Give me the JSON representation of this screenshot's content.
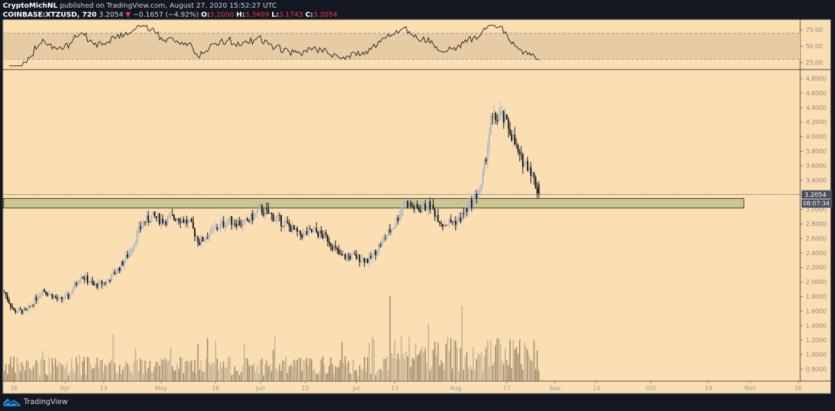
{
  "header": {
    "author": "CryptoMichNL",
    "published_text": "published on TradingView.com, August 27, 2020 15:52:27 UTC",
    "symbol": "COINBASE:XTZUSD, 720",
    "last": "3.2054",
    "change": "−0.1657 (−4.92%)",
    "o_label": "O:",
    "o": "3.2000",
    "h_label": "H:",
    "h": "3.3409",
    "l_label": "L:",
    "l": "3.1743",
    "c_label": "C:",
    "c": "3.2054"
  },
  "footer": {
    "brand": "TradingView"
  },
  "colors": {
    "background": "#fbdeb2",
    "up": "#a7b3c7",
    "down": "#111111",
    "zone": "#c9c78f",
    "panel": "#131722",
    "change_down": "#f23645"
  },
  "chart_data": [
    {
      "type": "candlestick",
      "timeframe": "12h",
      "price_ticks": [
        "4.8000",
        "4.6000",
        "4.4000",
        "4.2000",
        "4.0000",
        "3.8000",
        "3.6000",
        "3.4000",
        "3.0000",
        "2.8000",
        "2.6000",
        "2.4000",
        "2.2000",
        "2.0000",
        "1.8000",
        "1.6000",
        "1.4000",
        "1.2000",
        "1.0000",
        "0.8000"
      ],
      "ylim": [
        0.7,
        4.85
      ],
      "time_ticks": [
        "16",
        "Apr",
        "13",
        "May",
        "18",
        "Jun",
        "15",
        "Jul",
        "13",
        "Aug",
        "17",
        "Sep",
        "14",
        "Oct",
        "19",
        "Nov",
        "16"
      ],
      "approx_closes": [
        [
          "2020-03-13",
          1.86
        ],
        [
          "2020-03-16",
          1.6
        ],
        [
          "2020-03-20",
          1.6
        ],
        [
          "2020-03-25",
          1.9
        ],
        [
          "2020-03-30",
          1.75
        ],
        [
          "2020-04-02",
          1.8
        ],
        [
          "2020-04-06",
          2.1
        ],
        [
          "2020-04-10",
          1.95
        ],
        [
          "2020-04-14",
          2.0
        ],
        [
          "2020-04-18",
          2.2
        ],
        [
          "2020-04-21",
          2.4
        ],
        [
          "2020-04-25",
          2.8
        ],
        [
          "2020-04-28",
          2.9
        ],
        [
          "2020-05-02",
          2.85
        ],
        [
          "2020-05-06",
          2.9
        ],
        [
          "2020-05-10",
          2.8
        ],
        [
          "2020-05-13",
          2.55
        ],
        [
          "2020-05-17",
          2.7
        ],
        [
          "2020-05-22",
          2.85
        ],
        [
          "2020-05-27",
          2.8
        ],
        [
          "2020-06-01",
          3.0
        ],
        [
          "2020-06-05",
          2.9
        ],
        [
          "2020-06-09",
          2.8
        ],
        [
          "2020-06-13",
          2.65
        ],
        [
          "2020-06-18",
          2.7
        ],
        [
          "2020-06-22",
          2.6
        ],
        [
          "2020-06-26",
          2.35
        ],
        [
          "2020-06-30",
          2.35
        ],
        [
          "2020-07-05",
          2.3
        ],
        [
          "2020-07-09",
          2.55
        ],
        [
          "2020-07-13",
          2.8
        ],
        [
          "2020-07-16",
          3.1
        ],
        [
          "2020-07-20",
          3.0
        ],
        [
          "2020-07-24",
          3.05
        ],
        [
          "2020-07-28",
          2.8
        ],
        [
          "2020-08-02",
          2.85
        ],
        [
          "2020-08-06",
          3.1
        ],
        [
          "2020-08-09",
          3.3
        ],
        [
          "2020-08-12",
          4.2
        ],
        [
          "2020-08-15",
          4.3
        ],
        [
          "2020-08-18",
          4.1
        ],
        [
          "2020-08-21",
          3.7
        ],
        [
          "2020-08-24",
          3.6
        ],
        [
          "2020-08-27",
          3.2054
        ]
      ],
      "last_price_label": "3.2054",
      "countdown_label": "08:07:34",
      "support_zone": [
        3.02,
        3.15
      ]
    },
    {
      "type": "line",
      "indicator": "RSI",
      "y_ticks": [
        "75.00",
        "50.00",
        "25.00"
      ],
      "ylim": [
        15,
        85
      ],
      "bands": [
        30,
        70
      ]
    }
  ]
}
